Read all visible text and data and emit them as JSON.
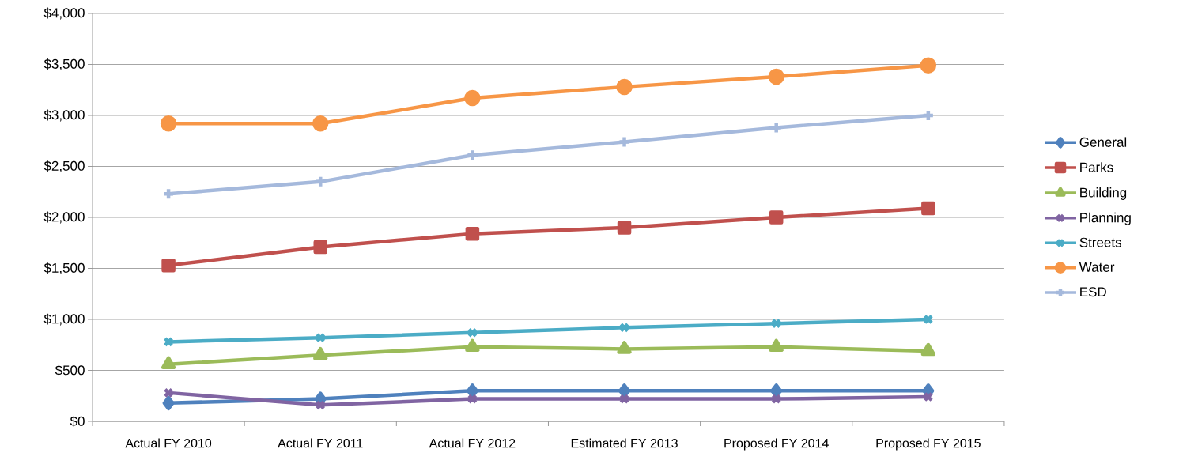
{
  "chart_data": {
    "type": "line",
    "categories": [
      "Actual FY 2010",
      "Actual FY 2011",
      "Actual FY 2012",
      "Estimated FY 2013",
      "Proposed FY 2014",
      "Proposed FY 2015"
    ],
    "series": [
      {
        "name": "General",
        "color": "#4f81bd",
        "marker": "diamond",
        "values": [
          180,
          220,
          300,
          300,
          300,
          300
        ]
      },
      {
        "name": "Parks",
        "color": "#c0504d",
        "marker": "square",
        "values": [
          1530,
          1710,
          1840,
          1900,
          2000,
          2090
        ]
      },
      {
        "name": "Building",
        "color": "#9bbb59",
        "marker": "triangle",
        "values": [
          560,
          650,
          730,
          710,
          730,
          690
        ]
      },
      {
        "name": "Planning",
        "color": "#8064a2",
        "marker": "cross",
        "values": [
          280,
          160,
          220,
          220,
          220,
          240
        ]
      },
      {
        "name": "Streets",
        "color": "#4bacc6",
        "marker": "cross",
        "values": [
          780,
          820,
          870,
          920,
          960,
          1000
        ]
      },
      {
        "name": "Water",
        "color": "#f79646",
        "marker": "circle",
        "values": [
          2920,
          2920,
          3170,
          3280,
          3380,
          3490
        ]
      },
      {
        "name": "ESD",
        "color": "#a5b9dc",
        "marker": "plus",
        "values": [
          2230,
          2350,
          2610,
          2740,
          2880,
          3000
        ]
      }
    ],
    "ylim": [
      0,
      4000
    ],
    "yticks": [
      {
        "value": 0,
        "label": "$0"
      },
      {
        "value": 500,
        "label": "$500"
      },
      {
        "value": 1000,
        "label": "$1,000"
      },
      {
        "value": 1500,
        "label": "$1,500"
      },
      {
        "value": 2000,
        "label": "$2,000"
      },
      {
        "value": 2500,
        "label": "$2,500"
      },
      {
        "value": 3000,
        "label": "$3,000"
      },
      {
        "value": 3500,
        "label": "$3,500"
      },
      {
        "value": 4000,
        "label": "$4,000"
      }
    ],
    "grid": "y",
    "legend": "right"
  }
}
